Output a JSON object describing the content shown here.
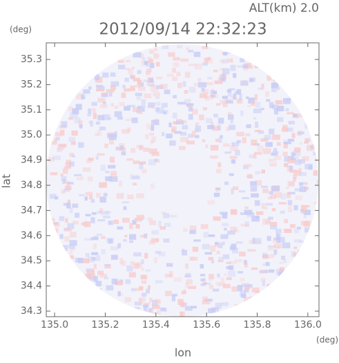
{
  "chart_data": {
    "type": "radar-field",
    "annotation": "ALT(km) 2.0",
    "title": "2012/09/14 22:32:23",
    "x_label": "lon",
    "x_unit": "(deg)",
    "y_label": "lat",
    "y_unit": "(deg)",
    "xlim": [
      134.967,
      136.044
    ],
    "xticks": [
      {
        "value": 135,
        "label": "135.0"
      },
      135.2,
      135.4,
      135.6,
      135.8,
      {
        "value": 136,
        "label": "136.0"
      }
    ],
    "ylim": [
      34.278,
      35.366
    ],
    "yticks": [
      34.3,
      34.4,
      34.5,
      34.6,
      34.7,
      34.8,
      34.9,
      {
        "value": 35,
        "label": "35.0"
      },
      35.1,
      35.2,
      35.3
    ]
  }
}
